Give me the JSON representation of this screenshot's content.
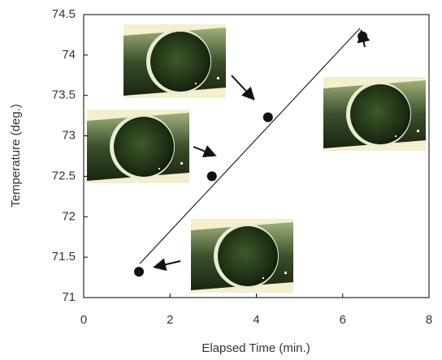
{
  "chart_data": {
    "type": "scatter",
    "x_label": "Elapsed Time (min.)",
    "y_label": "Temperature (deg.)",
    "x": [
      1.28,
      2.97,
      4.27,
      6.46
    ],
    "values": [
      71.32,
      72.5,
      73.23,
      74.23
    ],
    "color": "#111111",
    "trendline": {
      "x": [
        1.3,
        6.4
      ],
      "y": [
        71.42,
        74.33
      ]
    },
    "xlim": [
      0,
      8
    ],
    "xticks": [
      0,
      2,
      4,
      6,
      8
    ],
    "ylim": [
      71,
      74.5
    ],
    "yticks": [
      71,
      71.5,
      72,
      72.5,
      73,
      73.5,
      74,
      74.5
    ],
    "grid": false
  }
}
